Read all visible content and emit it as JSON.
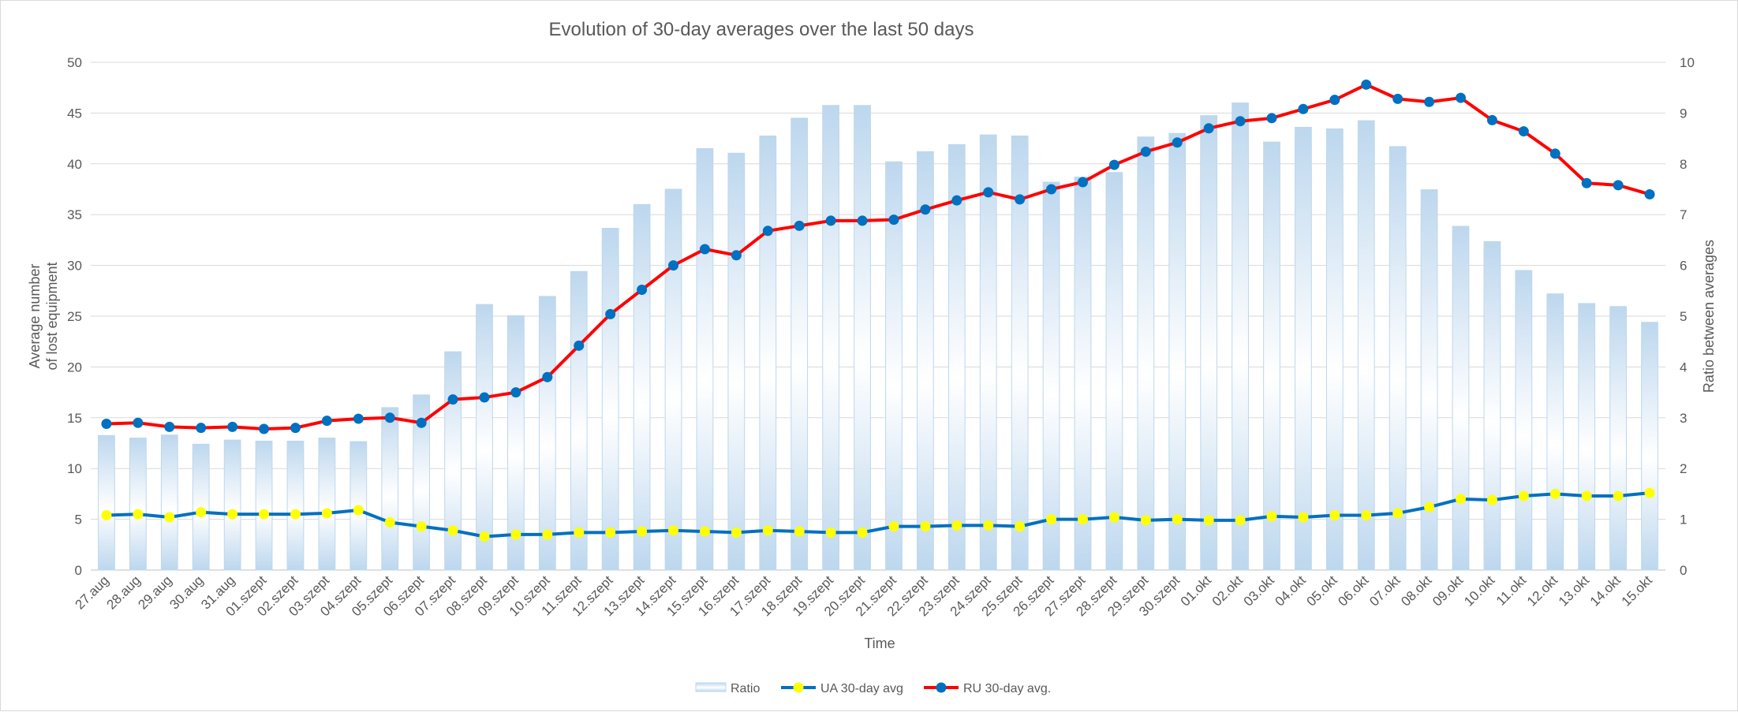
{
  "chart_data": {
    "type": "bar",
    "title": "Evolution of 30-day averages over the last 50 days",
    "xlabel": "Time",
    "ylabel_left_lines": [
      "Average number",
      "of lost equipment"
    ],
    "ylabel_right": "Ratio between averages",
    "ylim_left": [
      0,
      50
    ],
    "ylim_right": [
      0,
      10
    ],
    "left_ticks": [
      "0",
      "5",
      "10",
      "15",
      "20",
      "25",
      "30",
      "35",
      "40",
      "45",
      "50"
    ],
    "right_ticks": [
      "0",
      "1",
      "2",
      "3",
      "4",
      "5",
      "6",
      "7",
      "8",
      "9",
      "10"
    ],
    "grid": true,
    "legend_position": "bottom",
    "categories": [
      "27.aug",
      "28.aug",
      "29.aug",
      "30.aug",
      "31.aug",
      "01.szept",
      "02.szept",
      "03.szept",
      "04.szept",
      "05.szept",
      "06.szept",
      "07.szept",
      "08.szept",
      "09.szept",
      "10.szept",
      "11.szept",
      "12.szept",
      "13.szept",
      "14.szept",
      "15.szept",
      "16.szept",
      "17.szept",
      "18.szept",
      "19.szept",
      "20.szept",
      "21.szept",
      "22.szept",
      "23.szept",
      "24.szept",
      "25.szept",
      "26.szept",
      "27.szept",
      "28.szept",
      "29.szept",
      "30.szept",
      "01.okt",
      "02.okt",
      "03.okt",
      "04.okt",
      "05.okt",
      "06.okt",
      "07.okt",
      "08.okt",
      "09.okt",
      "10.okt",
      "11.okt",
      "12.okt",
      "13.okt",
      "14.okt",
      "15.okt"
    ],
    "series": [
      {
        "name": "Ratio",
        "kind": "bar",
        "axis": "right",
        "color": "#bdd7ee",
        "values": [
          2.65,
          2.6,
          2.66,
          2.48,
          2.56,
          2.54,
          2.54,
          2.6,
          2.53,
          3.2,
          3.45,
          4.3,
          5.23,
          5.01,
          5.39,
          5.88,
          6.73,
          7.2,
          7.5,
          8.3,
          8.21,
          8.55,
          8.9,
          9.15,
          9.15,
          8.04,
          8.24,
          8.38,
          8.57,
          8.55,
          7.64,
          7.74,
          7.83,
          8.53,
          8.6,
          8.95,
          9.2,
          8.43,
          8.72,
          8.69,
          8.85,
          8.34,
          7.49,
          6.77,
          6.47,
          5.9,
          5.44,
          5.25,
          5.19,
          4.88
        ]
      },
      {
        "name": "UA 30-day avg",
        "kind": "line",
        "axis": "left",
        "color": "#0070c0",
        "marker_color": "#ffff00",
        "values": [
          5.4,
          5.5,
          5.2,
          5.7,
          5.5,
          5.5,
          5.5,
          5.6,
          5.9,
          4.7,
          4.3,
          3.9,
          3.3,
          3.5,
          3.5,
          3.7,
          3.7,
          3.8,
          3.9,
          3.8,
          3.7,
          3.9,
          3.8,
          3.7,
          3.7,
          4.3,
          4.3,
          4.4,
          4.4,
          4.3,
          5.0,
          5.0,
          5.2,
          4.9,
          5.0,
          4.9,
          4.9,
          5.3,
          5.2,
          5.4,
          5.4,
          5.6,
          6.2,
          7.0,
          6.9,
          7.3,
          7.5,
          7.3,
          7.3,
          7.6
        ]
      },
      {
        "name": "RU 30-day avg.",
        "kind": "line",
        "axis": "left",
        "color": "#ff0000",
        "marker_color": "#0070c0",
        "values": [
          14.4,
          14.5,
          14.1,
          14.0,
          14.1,
          13.9,
          14.0,
          14.7,
          14.9,
          15.0,
          14.5,
          16.8,
          17.0,
          17.5,
          19.0,
          22.1,
          25.2,
          27.6,
          30.0,
          31.6,
          31.0,
          33.4,
          33.9,
          34.4,
          34.4,
          34.5,
          35.5,
          36.4,
          37.2,
          36.5,
          37.5,
          38.2,
          39.9,
          41.2,
          42.1,
          43.5,
          44.2,
          44.5,
          45.4,
          46.3,
          47.8,
          46.4,
          46.1,
          46.5,
          44.3,
          43.2,
          41.0,
          38.1,
          37.9,
          37.0
        ]
      }
    ]
  }
}
